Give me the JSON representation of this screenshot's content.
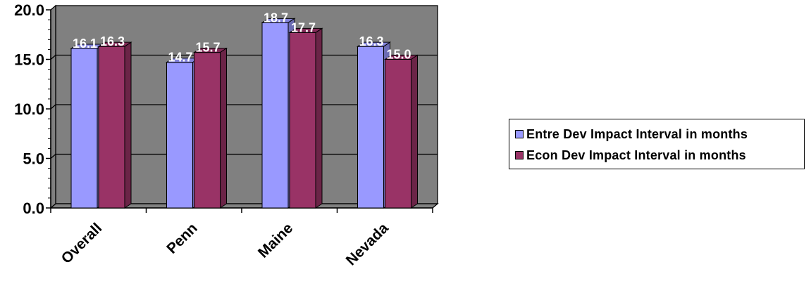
{
  "chart_data": {
    "type": "bar",
    "categories": [
      "Overall",
      "Penn",
      "Maine",
      "Nevada"
    ],
    "series": [
      {
        "name": "Entre Dev Impact Interval in months",
        "values": [
          16.1,
          14.7,
          18.7,
          16.3
        ],
        "labels": [
          "16.1",
          "14.7",
          "18.7",
          "16.3"
        ],
        "color": "#9999ff"
      },
      {
        "name": "Econ Dev Impact Interval in months",
        "values": [
          16.3,
          15.7,
          17.7,
          15.0
        ],
        "labels": [
          "16.3",
          "15.7",
          "17.7",
          "15.0"
        ],
        "color": "#993366"
      }
    ],
    "ylim": [
      0,
      20
    ],
    "yticks": [
      "0.0",
      "5.0",
      "10.0",
      "15.0",
      "20.0"
    ],
    "plot_background": "#808080",
    "grid": true,
    "three_d": true,
    "legend_position": "right"
  }
}
